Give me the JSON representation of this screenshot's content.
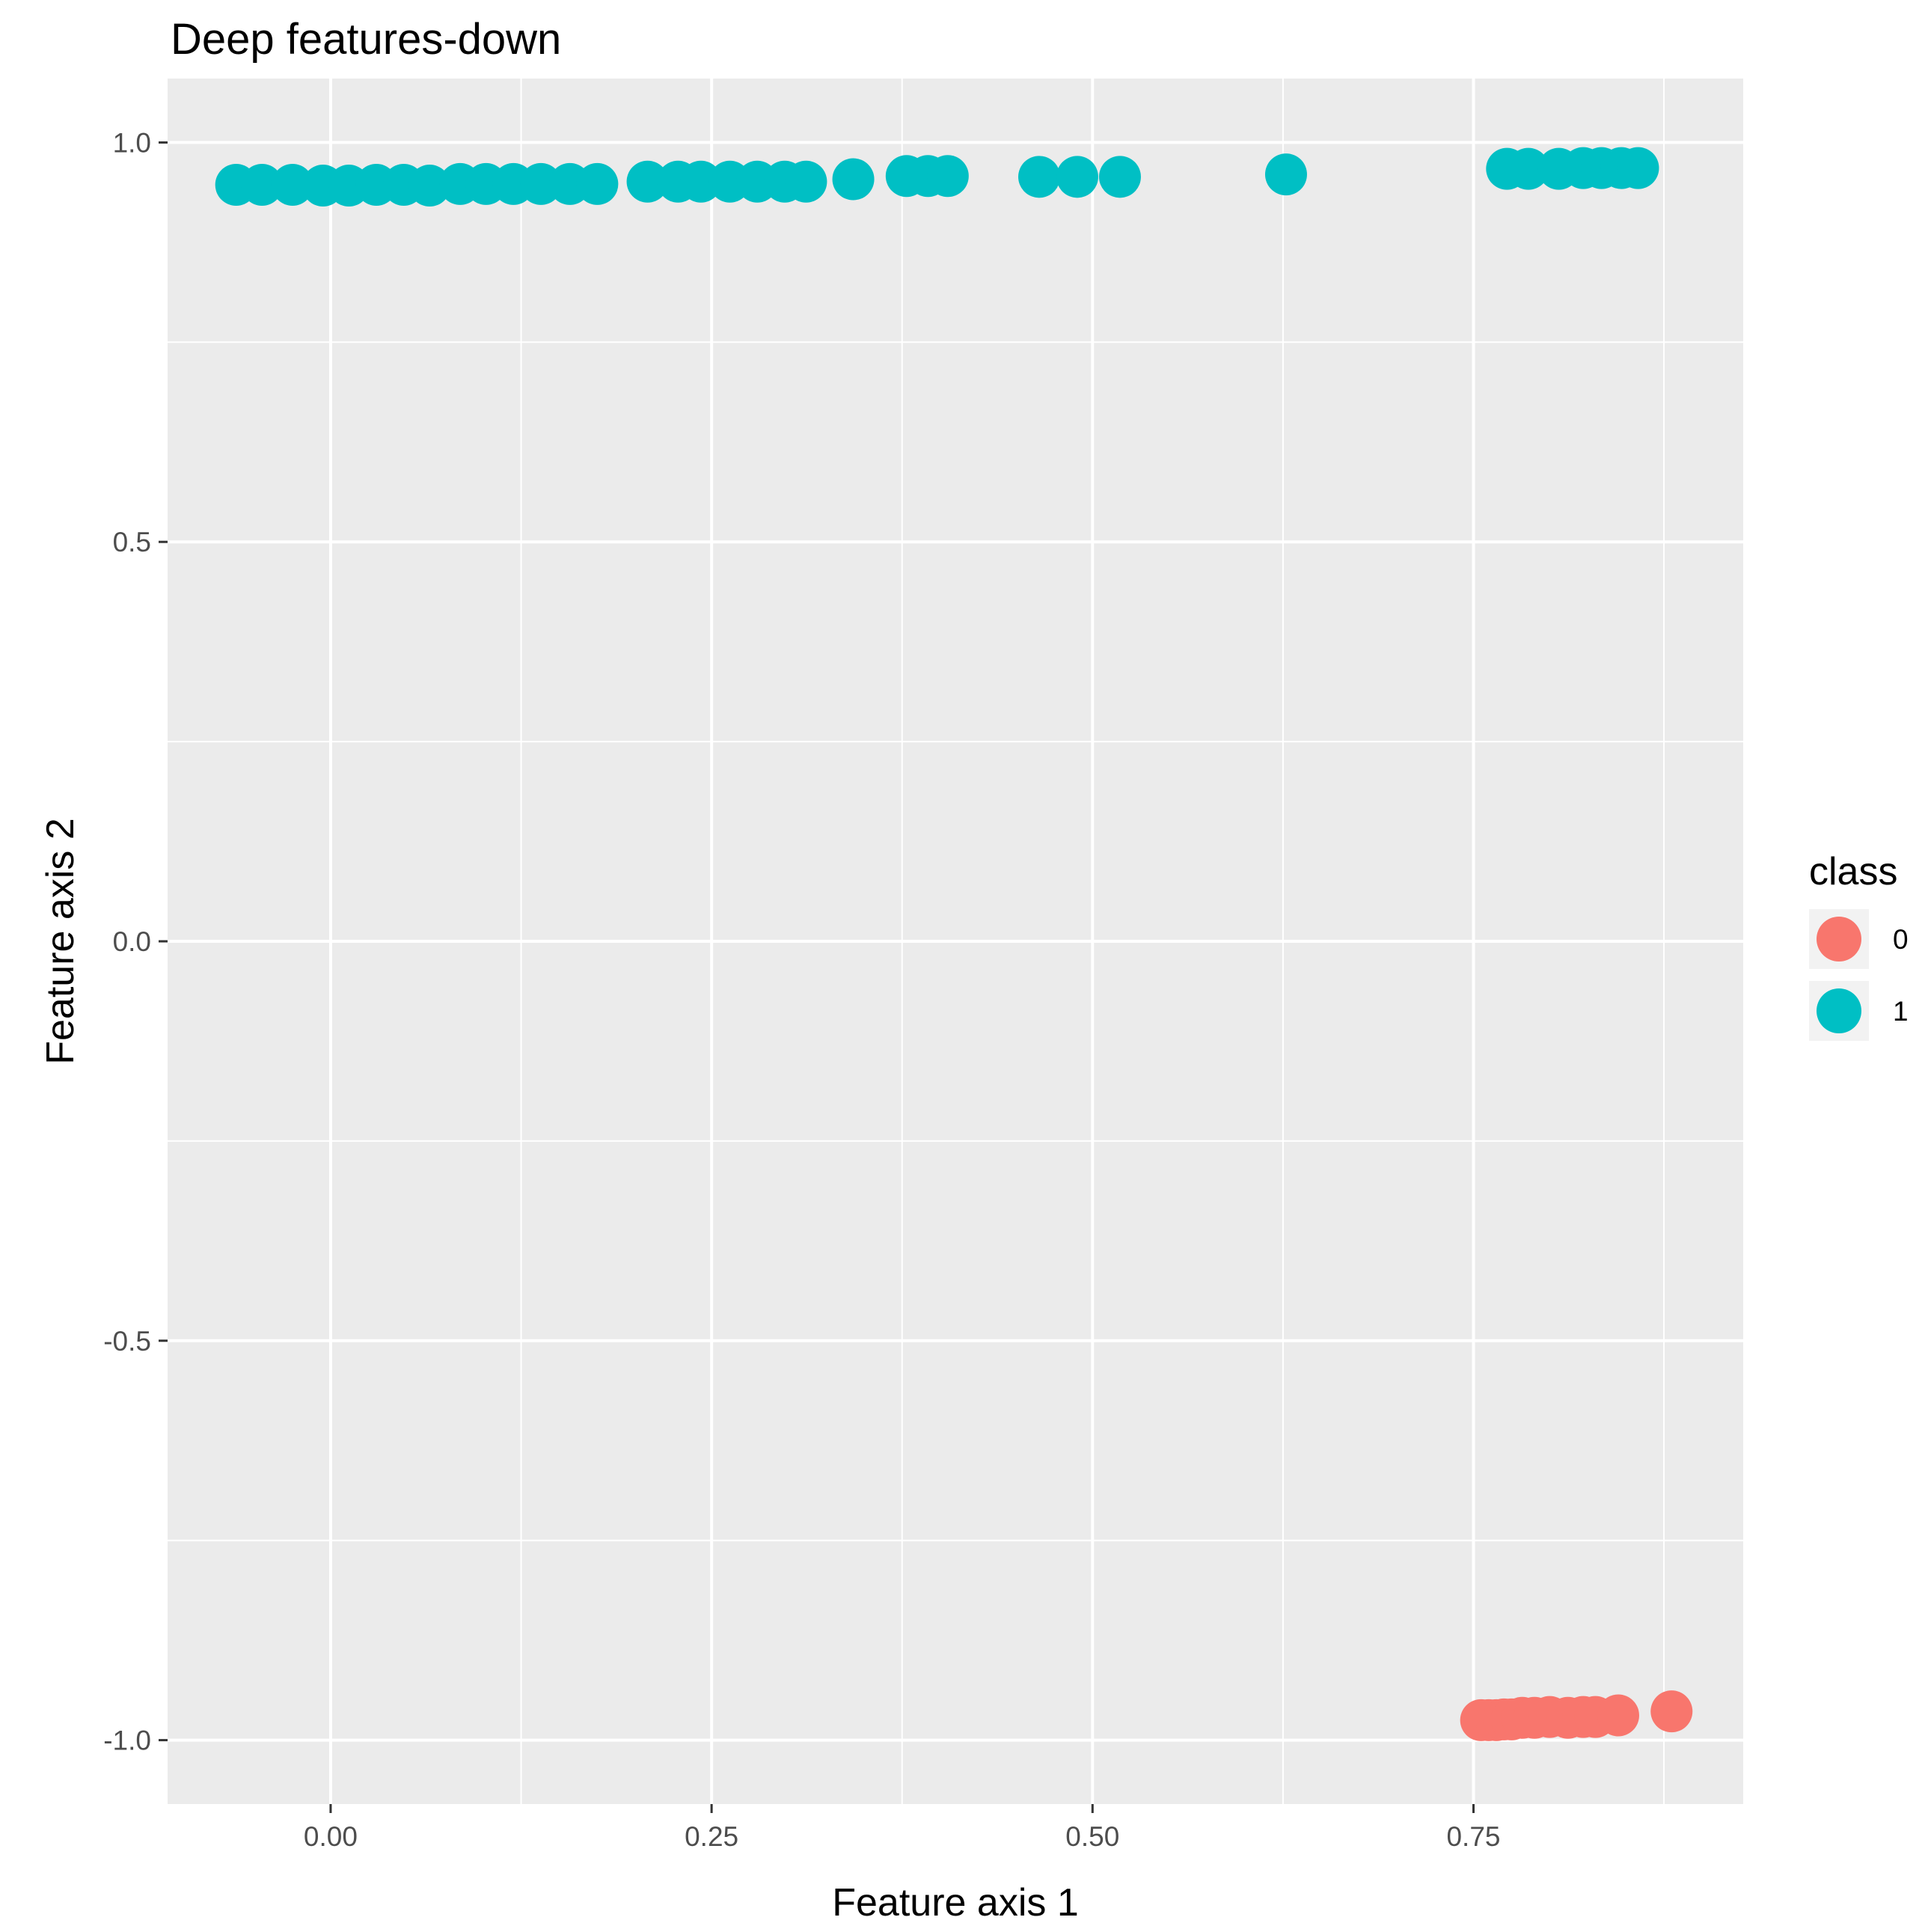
{
  "chart_data": {
    "type": "scatter",
    "title": "Deep features-down",
    "xlabel": "Feature axis 1",
    "ylabel": "Feature axis 2",
    "xlim": [
      -0.107,
      0.927
    ],
    "ylim": [
      -1.08,
      1.08
    ],
    "x_ticks": [
      0.0,
      0.25,
      0.5,
      0.75
    ],
    "x_tick_labels": [
      "0.00",
      "0.25",
      "0.50",
      "0.75"
    ],
    "y_ticks": [
      -1.0,
      -0.5,
      0.0,
      0.5,
      1.0
    ],
    "y_tick_labels": [
      "-1.0",
      "-0.5",
      "0.0",
      "0.5",
      "1.0"
    ],
    "grid": true,
    "legend": {
      "title": "class",
      "position": "right"
    },
    "series": [
      {
        "name": "0",
        "color": "#F8766D",
        "points": [
          [
            0.755,
            -0.975
          ],
          [
            0.76,
            -0.975
          ],
          [
            0.765,
            -0.975
          ],
          [
            0.77,
            -0.974
          ],
          [
            0.775,
            -0.974
          ],
          [
            0.782,
            -0.972
          ],
          [
            0.79,
            -0.972
          ],
          [
            0.8,
            -0.971
          ],
          [
            0.812,
            -0.972
          ],
          [
            0.822,
            -0.971
          ],
          [
            0.83,
            -0.971
          ],
          [
            0.845,
            -0.969
          ],
          [
            0.88,
            -0.964
          ]
        ]
      },
      {
        "name": "1",
        "color": "#00BFC4",
        "points": [
          [
            -0.062,
            0.947
          ],
          [
            -0.045,
            0.947
          ],
          [
            -0.025,
            0.947
          ],
          [
            -0.005,
            0.946
          ],
          [
            0.012,
            0.946
          ],
          [
            0.03,
            0.947
          ],
          [
            0.048,
            0.947
          ],
          [
            0.065,
            0.946
          ],
          [
            0.085,
            0.948
          ],
          [
            0.102,
            0.948
          ],
          [
            0.12,
            0.948
          ],
          [
            0.138,
            0.948
          ],
          [
            0.157,
            0.948
          ],
          [
            0.175,
            0.948
          ],
          [
            0.208,
            0.951
          ],
          [
            0.228,
            0.951
          ],
          [
            0.243,
            0.951
          ],
          [
            0.262,
            0.951
          ],
          [
            0.28,
            0.951
          ],
          [
            0.298,
            0.951
          ],
          [
            0.312,
            0.951
          ],
          [
            0.343,
            0.954
          ],
          [
            0.378,
            0.958
          ],
          [
            0.392,
            0.958
          ],
          [
            0.405,
            0.958
          ],
          [
            0.465,
            0.957
          ],
          [
            0.49,
            0.957
          ],
          [
            0.518,
            0.957
          ],
          [
            0.627,
            0.96
          ],
          [
            0.772,
            0.967
          ],
          [
            0.786,
            0.967
          ],
          [
            0.806,
            0.967
          ],
          [
            0.822,
            0.968
          ],
          [
            0.834,
            0.968
          ],
          [
            0.847,
            0.968
          ],
          [
            0.858,
            0.968
          ]
        ]
      }
    ]
  }
}
